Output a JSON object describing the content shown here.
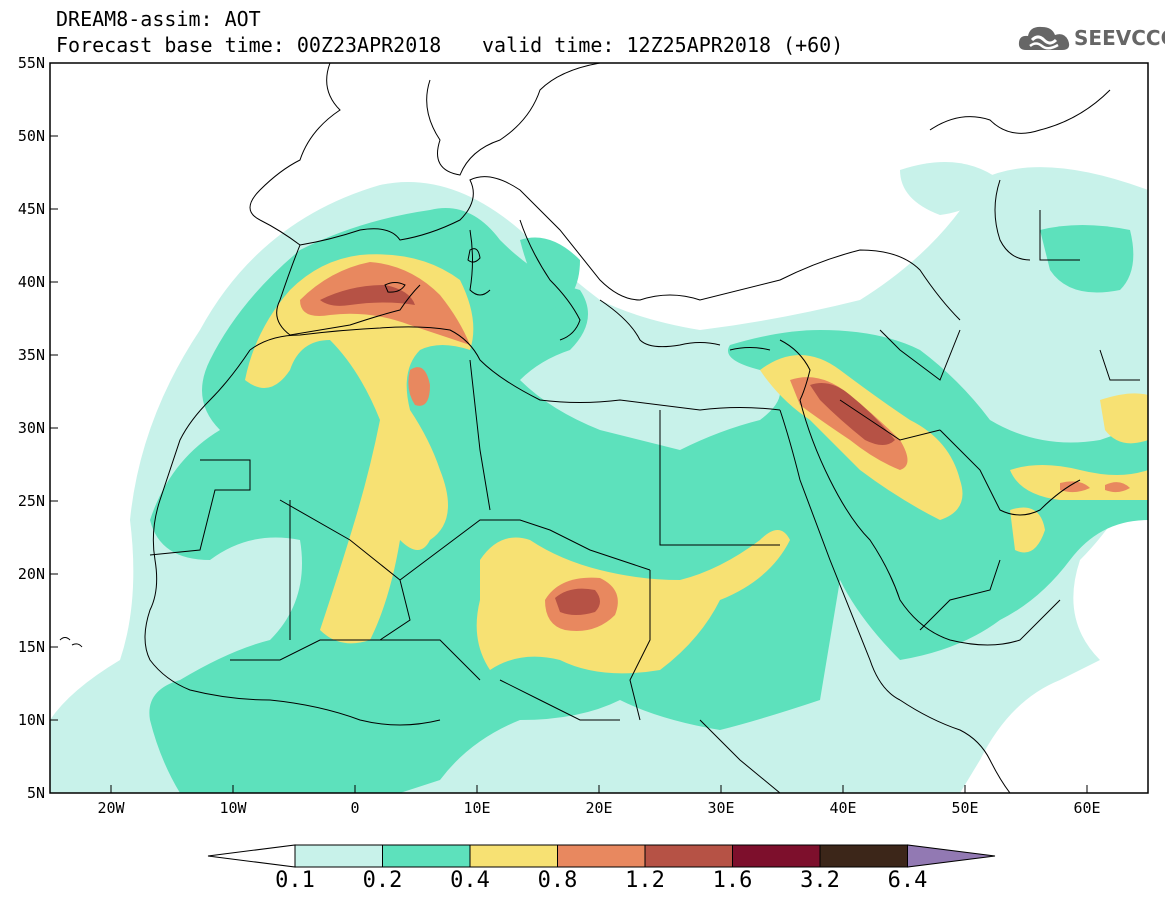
{
  "header": {
    "title_line1": "DREAM8-assim: AOT",
    "forecast_base": "Forecast base time: 00Z23APR2018",
    "valid_time": "valid time: 12Z25APR2018 (+60)"
  },
  "logo": {
    "text": "SEEVCCC",
    "icon": "cloud-icon"
  },
  "map": {
    "lon_labels": [
      "20W",
      "10W",
      "0",
      "10E",
      "20E",
      "30E",
      "40E",
      "50E",
      "60E"
    ],
    "lat_labels": [
      "55N",
      "50N",
      "45N",
      "40N",
      "35N",
      "30N",
      "25N",
      "20N",
      "15N",
      "10N",
      "5N"
    ],
    "extent": {
      "lon": [
        -25,
        65
      ],
      "lat": [
        5,
        55
      ]
    }
  },
  "colorbar": {
    "labels": [
      "0.1",
      "0.2",
      "0.4",
      "0.8",
      "1.2",
      "1.6",
      "3.2",
      "6.4"
    ],
    "colors": [
      "#c8f2ea",
      "#5de1bc",
      "#f7e173",
      "#e8885f",
      "#b65245",
      "#7d0f2c",
      "#3c2619",
      "#9279b3"
    ]
  }
}
